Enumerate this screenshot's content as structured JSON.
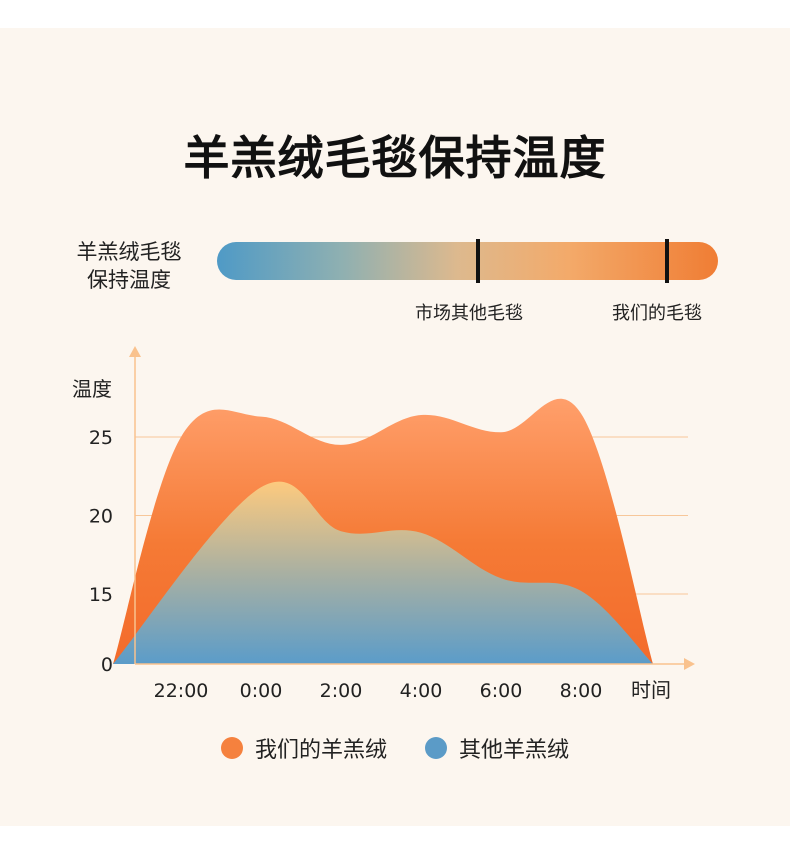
{
  "title": "羊羔绒毛毯保持温度",
  "gauge": {
    "label_line1": "羊羔绒毛毯",
    "label_line2": "保持温度",
    "markers": [
      {
        "label": "市场其他毛毯",
        "level": 0.52
      },
      {
        "label": "我们的毛毯",
        "level": 0.9
      }
    ],
    "colors": [
      "#4f9ac6",
      "#ddb98e",
      "#f07d34"
    ]
  },
  "chart_data": {
    "type": "area",
    "ylabel": "温度",
    "xlabel": "时间",
    "x_ticks": [
      "22:00",
      "0:00",
      "2:00",
      "4:00",
      "6:00",
      "8:00"
    ],
    "y_ticks": [
      0,
      15,
      20,
      25
    ],
    "series": [
      {
        "name": "我们的羊羔绒",
        "color": "#f5813e",
        "points": [
          [
            -0.85,
            0
          ],
          [
            0,
            25
          ],
          [
            1,
            26.3
          ],
          [
            2,
            24.5
          ],
          [
            3,
            26.4
          ],
          [
            4,
            25.3
          ],
          [
            5,
            26.5
          ],
          [
            5.9,
            0
          ]
        ]
      },
      {
        "name": "其他羊羔绒",
        "color": "#5b9bc7",
        "points": [
          [
            -0.85,
            0
          ],
          [
            1,
            21.8
          ],
          [
            2,
            19
          ],
          [
            3,
            18.9
          ],
          [
            4,
            16
          ],
          [
            5,
            15.2
          ],
          [
            5.9,
            0
          ]
        ]
      }
    ]
  }
}
